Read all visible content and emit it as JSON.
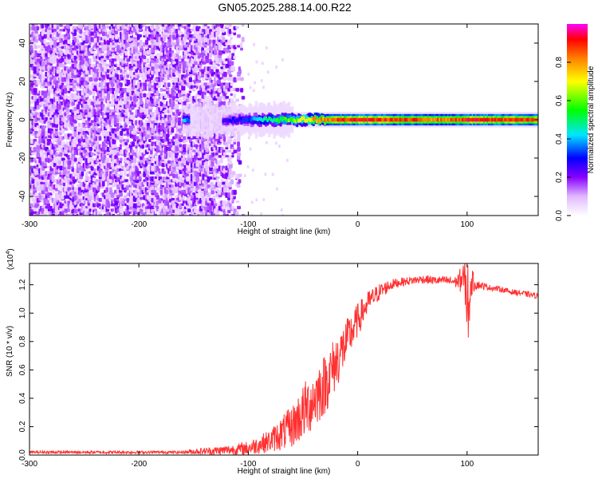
{
  "figure": {
    "title": "GN05.2025.288.14.00.R22"
  },
  "chart_data": [
    {
      "type": "heatmap",
      "title": "GN05.2025.288.14.00.R22",
      "xlabel": "Height of straight line (km)",
      "ylabel": "Frequency (Hz)",
      "xlim": [
        -300,
        165
      ],
      "ylim": [
        -50,
        50
      ],
      "x_ticks": [
        -300,
        -200,
        -100,
        0,
        100
      ],
      "y_ticks": [
        -40,
        -20,
        0,
        20,
        40
      ],
      "noise_region_x": [
        -300,
        -105
      ],
      "signal_frequency_hz": 0,
      "colorbar": {
        "label": "Normalized spectral amplitude",
        "range": [
          0.0,
          1.0
        ],
        "ticks": [
          0.0,
          0.2,
          0.4,
          0.6,
          0.8
        ],
        "tick_labels": [
          "0.0",
          "0.2",
          "0.4",
          "0.6",
          "0.8"
        ],
        "colormap": [
          "#ffffff",
          "#e8c8ff",
          "#8800ff",
          "#0000ff",
          "#00e5ff",
          "#00ff00",
          "#ffff00",
          "#ff8000",
          "#ff0000",
          "#ff00ff"
        ]
      },
      "signal_band": [
        {
          "x": -160,
          "amp": 0.45
        },
        {
          "x": -125,
          "amp": 0.3
        },
        {
          "x": -110,
          "amp": 0.35
        },
        {
          "x": -100,
          "amp": 0.4
        },
        {
          "x": -90,
          "amp": 0.5
        },
        {
          "x": -80,
          "amp": 0.55
        },
        {
          "x": -70,
          "amp": 0.6
        },
        {
          "x": -60,
          "amp": 0.65
        },
        {
          "x": -50,
          "amp": 0.7
        },
        {
          "x": -40,
          "amp": 0.8
        },
        {
          "x": -20,
          "amp": 0.9
        },
        {
          "x": 0,
          "amp": 0.95
        },
        {
          "x": 40,
          "amp": 0.9
        },
        {
          "x": 80,
          "amp": 0.85
        },
        {
          "x": 100,
          "amp": 0.95
        },
        {
          "x": 165,
          "amp": 0.9
        }
      ]
    },
    {
      "type": "line",
      "title": "",
      "xlabel": "Height of straight line (km)",
      "ylabel": "SNR (10 * v/v)",
      "y_multiplier": "(x10",
      "y_multiplier_exp": "4",
      "y_multiplier_close": ")",
      "xlim": [
        -300,
        165
      ],
      "ylim": [
        0,
        1.35
      ],
      "x_ticks": [
        -300,
        -200,
        -100,
        0,
        100
      ],
      "y_ticks": [
        0.0,
        0.2,
        0.4,
        0.6,
        0.8,
        1.0,
        1.2
      ],
      "y_tick_labels": [
        "0.0",
        "0.2",
        "0.4",
        "0.6",
        "0.8",
        "1.0",
        "1.2"
      ],
      "color": "#ff3030",
      "series": [
        {
          "name": "SNR",
          "x": [
            -300,
            -250,
            -200,
            -160,
            -150,
            -130,
            -110,
            -100,
            -80,
            -70,
            -60,
            -50,
            -40,
            -30,
            -20,
            -10,
            0,
            10,
            20,
            30,
            40,
            50,
            60,
            70,
            80,
            90,
            95,
            100,
            105,
            110,
            120,
            130,
            140,
            150,
            165
          ],
          "y": [
            0.02,
            0.02,
            0.02,
            0.02,
            0.025,
            0.03,
            0.04,
            0.05,
            0.1,
            0.15,
            0.2,
            0.3,
            0.4,
            0.5,
            0.65,
            0.8,
            0.95,
            1.08,
            1.15,
            1.2,
            1.22,
            1.23,
            1.24,
            1.23,
            1.23,
            1.22,
            1.24,
            1.2,
            1.22,
            1.2,
            1.18,
            1.17,
            1.15,
            1.14,
            1.12
          ],
          "noise_amplitude": [
            0.01,
            0.01,
            0.01,
            0.01,
            0.02,
            0.03,
            0.04,
            0.05,
            0.08,
            0.12,
            0.15,
            0.2,
            0.22,
            0.22,
            0.2,
            0.16,
            0.12,
            0.08,
            0.06,
            0.04,
            0.03,
            0.03,
            0.03,
            0.03,
            0.03,
            0.04,
            0.1,
            0.2,
            0.08,
            0.03,
            0.02,
            0.02,
            0.02,
            0.02,
            0.02
          ]
        }
      ]
    }
  ]
}
